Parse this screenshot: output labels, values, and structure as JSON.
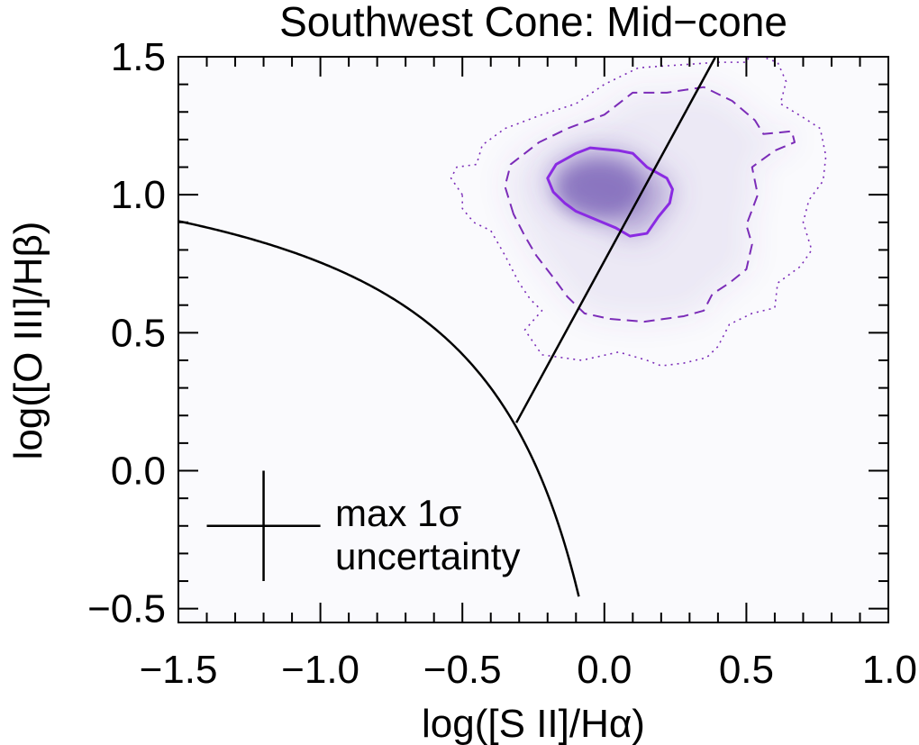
{
  "chart_data": {
    "type": "scatter",
    "title": "Southwest Cone: Mid−cone",
    "xlabel": "log([S II]/Hα)",
    "ylabel": "log([O III]/Hβ)",
    "xlim": [
      -1.5,
      1.0
    ],
    "ylim": [
      -0.55,
      1.5
    ],
    "xticks": [
      -1.5,
      -1.0,
      -0.5,
      0.0,
      0.5,
      1.0
    ],
    "xtick_labels": [
      "−1.5",
      "−1.0",
      "−0.5",
      "0.0",
      "0.5",
      "1.0"
    ],
    "yticks": [
      -0.5,
      0.0,
      0.5,
      1.0,
      1.5
    ],
    "ytick_labels": [
      "−0.5",
      "0.0",
      "0.5",
      "1.0",
      "1.5"
    ],
    "x_minor_step": 0.1,
    "y_minor_step": 0.1,
    "colors": {
      "density": "#6a4eae",
      "contour": "#7b2cb8",
      "contour_inner": "#8a2be2",
      "lines": "#000000",
      "background": "#fafafd"
    },
    "density_peak": {
      "x": -0.02,
      "y": 1.02
    },
    "curves": [
      {
        "name": "kewley-max-starburst",
        "formula": "0.72/(x-0.32)+1.30",
        "x_range": [
          -1.5,
          -0.09
        ]
      },
      {
        "name": "seyfert-liner-line",
        "formula": "1.89x+0.76",
        "x_range": [
          -0.31,
          0.39
        ]
      }
    ],
    "contours": [
      {
        "level": "inner",
        "style": "solid",
        "points": [
          [
            -0.2,
            1.06
          ],
          [
            -0.17,
            1.11
          ],
          [
            -0.1,
            1.15
          ],
          [
            -0.05,
            1.17
          ],
          [
            0.05,
            1.16
          ],
          [
            0.1,
            1.15
          ],
          [
            0.15,
            1.1
          ],
          [
            0.22,
            1.06
          ],
          [
            0.24,
            1.02
          ],
          [
            0.23,
            0.97
          ],
          [
            0.19,
            0.92
          ],
          [
            0.15,
            0.86
          ],
          [
            0.09,
            0.85
          ],
          [
            0.04,
            0.88
          ],
          [
            -0.03,
            0.91
          ],
          [
            -0.1,
            0.94
          ],
          [
            -0.14,
            0.97
          ],
          [
            -0.18,
            1.01
          ]
        ]
      },
      {
        "level": "middle",
        "style": "dashed",
        "points": [
          [
            -0.32,
            0.93
          ],
          [
            -0.35,
            1.03
          ],
          [
            -0.33,
            1.11
          ],
          [
            -0.23,
            1.19
          ],
          [
            -0.13,
            1.24
          ],
          [
            0.0,
            1.29
          ],
          [
            0.1,
            1.37
          ],
          [
            0.22,
            1.37
          ],
          [
            0.35,
            1.39
          ],
          [
            0.45,
            1.34
          ],
          [
            0.53,
            1.27
          ],
          [
            0.56,
            1.22
          ],
          [
            0.66,
            1.23
          ],
          [
            0.67,
            1.19
          ],
          [
            0.6,
            1.16
          ],
          [
            0.52,
            1.1
          ],
          [
            0.54,
            1.0
          ],
          [
            0.5,
            0.89
          ],
          [
            0.52,
            0.82
          ],
          [
            0.5,
            0.73
          ],
          [
            0.44,
            0.68
          ],
          [
            0.38,
            0.64
          ],
          [
            0.35,
            0.58
          ],
          [
            0.28,
            0.56
          ],
          [
            0.14,
            0.54
          ],
          [
            0.02,
            0.55
          ],
          [
            -0.07,
            0.57
          ],
          [
            -0.13,
            0.63
          ],
          [
            -0.18,
            0.7
          ],
          [
            -0.24,
            0.78
          ],
          [
            -0.28,
            0.85
          ]
        ]
      },
      {
        "level": "outer",
        "style": "dotted",
        "points": [
          [
            -0.5,
            1.0
          ],
          [
            -0.54,
            1.06
          ],
          [
            -0.52,
            1.1
          ],
          [
            -0.45,
            1.11
          ],
          [
            -0.43,
            1.18
          ],
          [
            -0.35,
            1.24
          ],
          [
            -0.22,
            1.29
          ],
          [
            -0.1,
            1.33
          ],
          [
            0.0,
            1.4
          ],
          [
            0.12,
            1.46
          ],
          [
            0.26,
            1.47
          ],
          [
            0.4,
            1.48
          ],
          [
            0.5,
            1.48
          ],
          [
            0.52,
            1.52
          ],
          [
            0.58,
            1.49
          ],
          [
            0.61,
            1.48
          ],
          [
            0.64,
            1.41
          ],
          [
            0.62,
            1.33
          ],
          [
            0.7,
            1.28
          ],
          [
            0.76,
            1.24
          ],
          [
            0.78,
            1.14
          ],
          [
            0.77,
            1.05
          ],
          [
            0.72,
            0.98
          ],
          [
            0.7,
            0.9
          ],
          [
            0.73,
            0.8
          ],
          [
            0.69,
            0.74
          ],
          [
            0.61,
            0.68
          ],
          [
            0.6,
            0.59
          ],
          [
            0.52,
            0.57
          ],
          [
            0.44,
            0.53
          ],
          [
            0.4,
            0.45
          ],
          [
            0.36,
            0.41
          ],
          [
            0.28,
            0.39
          ],
          [
            0.2,
            0.38
          ],
          [
            0.15,
            0.4
          ],
          [
            0.05,
            0.43
          ],
          [
            -0.08,
            0.4
          ],
          [
            -0.22,
            0.42
          ],
          [
            -0.28,
            0.51
          ],
          [
            -0.22,
            0.58
          ],
          [
            -0.26,
            0.62
          ],
          [
            -0.3,
            0.68
          ],
          [
            -0.35,
            0.78
          ],
          [
            -0.4,
            0.87
          ],
          [
            -0.46,
            0.9
          ],
          [
            -0.5,
            0.95
          ]
        ]
      }
    ],
    "error_bar": {
      "label_line1": "max 1σ",
      "label_line2": "uncertainty",
      "x": -1.2,
      "y": -0.2,
      "x_err": 0.2,
      "y_err": 0.2
    }
  }
}
